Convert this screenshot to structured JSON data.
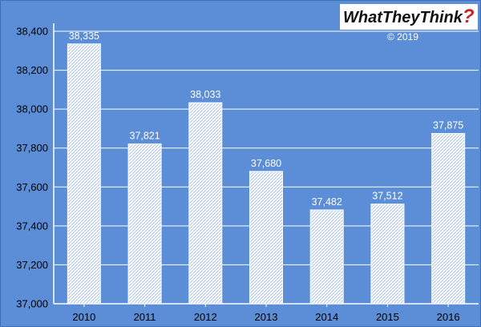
{
  "brand": {
    "logo_text": "WhatTheyThink",
    "logo_mark": "?",
    "copyright": "© 2019"
  },
  "colors": {
    "background": "#5b8ed6",
    "bar_fill": "#ffffff",
    "bar_pattern": "#a9c4ea"
  },
  "chart_data": {
    "type": "bar",
    "title": "",
    "xlabel": "",
    "ylabel": "",
    "categories": [
      "2010",
      "2011",
      "2012",
      "2013",
      "2014",
      "2015",
      "2016"
    ],
    "values": [
      38335,
      37821,
      38033,
      37680,
      37482,
      37512,
      37875
    ],
    "data_labels": [
      "38,335",
      "37,821",
      "38,033",
      "37,680",
      "37,482",
      "37,512",
      "37,875"
    ],
    "ylim": [
      37000,
      38400
    ],
    "yticks": [
      37000,
      37200,
      37400,
      37600,
      37800,
      38000,
      38200,
      38400
    ],
    "ytick_labels": [
      "37,000",
      "37,200",
      "37,400",
      "37,600",
      "37,800",
      "38,000",
      "38,200",
      "38,400"
    ],
    "grid": true,
    "legend": "none"
  }
}
